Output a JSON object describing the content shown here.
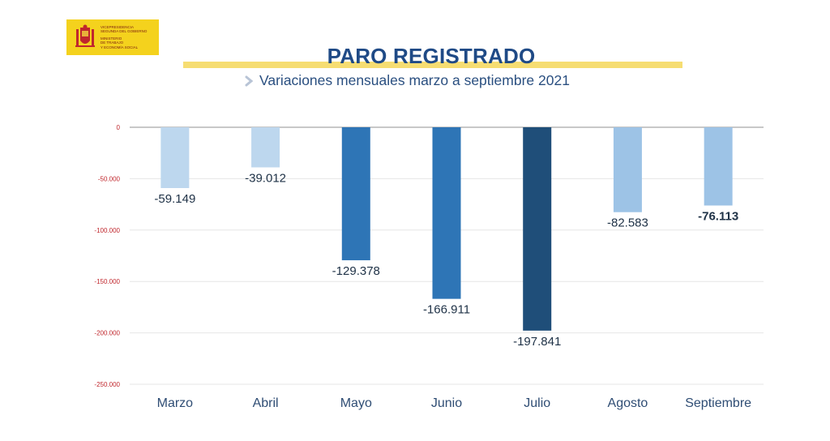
{
  "logo": {
    "lines_top": [
      "VICEPRESIDENCIA",
      "SEGUNDA DEL GOBIERNO"
    ],
    "lines_bottom": [
      "MINISTERIO",
      "DE TRABAJO",
      "Y ECONOMÍA SOCIAL"
    ],
    "seal_icon": "spain-coat-of-arms-icon",
    "background": "#f4d21d"
  },
  "title": "PARO REGISTRADO",
  "subtitle": "Variaciones mensuales marzo a septiembre 2021",
  "subtitle_icon": "chevron-right-icon",
  "colors": {
    "title": "#1f4a86",
    "underline": "#f6dd72",
    "tick_labels": "#c0272d"
  },
  "chart_data": {
    "type": "bar",
    "categories": [
      "Marzo",
      "Abril",
      "Mayo",
      "Junio",
      "Julio",
      "Agosto",
      "Septiembre"
    ],
    "values": [
      -59149,
      -39012,
      -129378,
      -166911,
      -197841,
      -82583,
      -76113
    ],
    "data_labels": [
      "-59.149",
      "-39.012",
      "-129.378",
      "-166.911",
      "-197.841",
      "-82.583",
      "-76.113"
    ],
    "bold_labels": [
      false,
      false,
      false,
      false,
      false,
      false,
      true
    ],
    "bar_colors": [
      "#bdd7ee",
      "#bdd7ee",
      "#2e75b6",
      "#2e75b6",
      "#1f4e79",
      "#9dc3e6",
      "#9dc3e6"
    ],
    "y_ticks": [
      0,
      -50000,
      -100000,
      -150000,
      -200000,
      -250000
    ],
    "y_tick_labels": [
      "0",
      "-50.000",
      "-100.000",
      "-150.000",
      "-200.000",
      "-250.000"
    ],
    "ylim": [
      -250000,
      0
    ],
    "grid": true
  }
}
